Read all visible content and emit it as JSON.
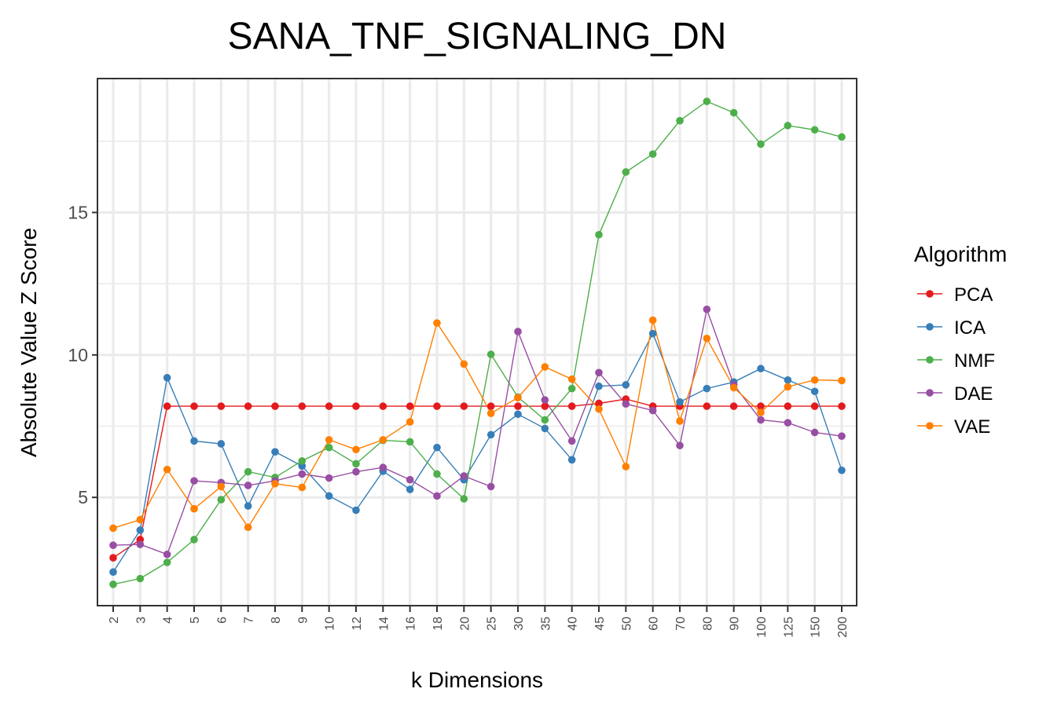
{
  "chart_data": {
    "type": "line",
    "title": "SANA_TNF_SIGNALING_DN",
    "xlabel": "k Dimensions",
    "ylabel": "Absolute Value Z Score",
    "categories": [
      "2",
      "3",
      "4",
      "5",
      "6",
      "7",
      "8",
      "9",
      "10",
      "12",
      "14",
      "16",
      "18",
      "20",
      "25",
      "30",
      "35",
      "40",
      "45",
      "50",
      "60",
      "70",
      "80",
      "90",
      "100",
      "125",
      "150",
      "200"
    ],
    "ylim": [
      1.2,
      19.7
    ],
    "yticks": [
      5,
      10,
      15
    ],
    "ytick_labels": [
      "5",
      "10",
      "15"
    ],
    "grid": true,
    "legend": {
      "title": "Algorithm",
      "position": "right"
    },
    "series": [
      {
        "name": "PCA",
        "color": "#e41a1c",
        "values": [
          2.88,
          3.52,
          8.2,
          8.2,
          8.2,
          8.2,
          8.2,
          8.2,
          8.2,
          8.2,
          8.2,
          8.2,
          8.2,
          8.2,
          8.2,
          8.2,
          8.2,
          8.2,
          8.3,
          8.45,
          8.2,
          8.2,
          8.2,
          8.2,
          8.2,
          8.2,
          8.2,
          8.2
        ]
      },
      {
        "name": "ICA",
        "color": "#377eb8",
        "values": [
          2.38,
          3.85,
          9.2,
          6.98,
          6.88,
          4.7,
          6.6,
          6.1,
          5.05,
          4.55,
          5.92,
          5.28,
          6.75,
          5.62,
          7.2,
          7.92,
          7.42,
          6.32,
          8.9,
          8.95,
          10.75,
          8.35,
          8.82,
          9.05,
          9.52,
          9.12,
          8.72,
          5.95
        ]
      },
      {
        "name": "NMF",
        "color": "#4daf4a",
        "values": [
          1.95,
          2.15,
          2.72,
          3.52,
          4.92,
          5.9,
          5.7,
          6.28,
          6.75,
          6.18,
          7.0,
          6.95,
          5.82,
          4.95,
          10.02,
          8.52,
          7.72,
          8.82,
          14.22,
          16.42,
          17.05,
          18.22,
          18.9,
          18.5,
          17.4,
          18.05,
          17.9,
          17.65
        ]
      },
      {
        "name": "DAE",
        "color": "#984ea3",
        "values": [
          3.32,
          3.35,
          3.0,
          5.58,
          5.52,
          5.42,
          5.58,
          5.82,
          5.68,
          5.9,
          6.05,
          5.62,
          5.05,
          5.75,
          5.38,
          10.82,
          8.42,
          6.98,
          9.38,
          8.28,
          8.05,
          6.82,
          11.6,
          8.95,
          7.72,
          7.62,
          7.28,
          7.15
        ]
      },
      {
        "name": "VAE",
        "color": "#ff7f00",
        "values": [
          3.92,
          4.22,
          5.98,
          4.6,
          5.38,
          3.95,
          5.48,
          5.35,
          7.02,
          6.68,
          7.02,
          7.65,
          11.12,
          9.68,
          7.95,
          8.5,
          9.58,
          9.15,
          8.1,
          6.08,
          11.22,
          7.68,
          10.58,
          8.85,
          7.98,
          8.88,
          9.12,
          9.1
        ]
      }
    ]
  }
}
